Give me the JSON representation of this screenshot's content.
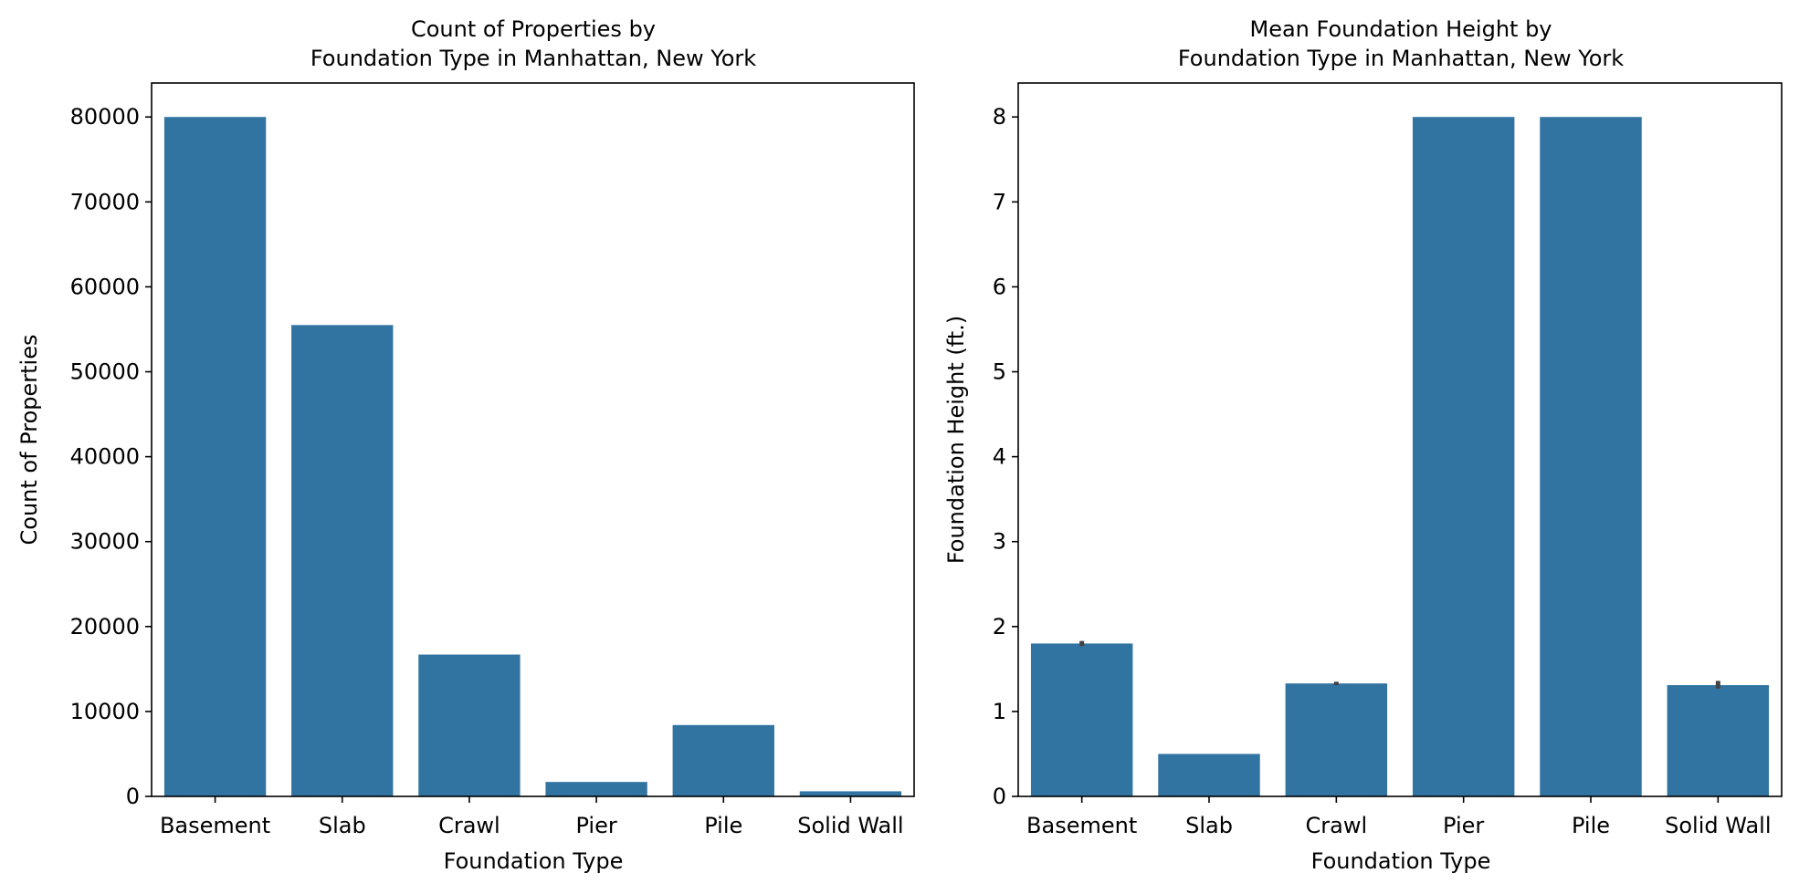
{
  "chart_data": [
    {
      "type": "bar",
      "title_lines": [
        "Count of Properties by",
        "Foundation Type in Manhattan, New York"
      ],
      "xlabel": "Foundation Type",
      "ylabel": "Count of Properties",
      "categories": [
        "Basement",
        "Slab",
        "Crawl",
        "Pier",
        "Pile",
        "Solid Wall"
      ],
      "values": [
        80000,
        55500,
        16700,
        1700,
        8400,
        600
      ],
      "ylim": [
        0,
        84000
      ],
      "yticks": [
        0,
        10000,
        20000,
        30000,
        40000,
        50000,
        60000,
        70000,
        80000
      ],
      "grid": false,
      "bar_color": "#3274a1",
      "error_bars": null
    },
    {
      "type": "bar",
      "title_lines": [
        "Mean Foundation Height by",
        "Foundation Type in Manhattan, New York"
      ],
      "xlabel": "Foundation Type",
      "ylabel": "Foundation Height (ft.)",
      "categories": [
        "Basement",
        "Slab",
        "Crawl",
        "Pier",
        "Pile",
        "Solid Wall"
      ],
      "values": [
        1.8,
        0.5,
        1.33,
        8.0,
        8.0,
        1.31
      ],
      "ylim": [
        0,
        8.4
      ],
      "yticks": [
        0,
        1,
        2,
        3,
        4,
        5,
        6,
        7,
        8
      ],
      "grid": false,
      "bar_color": "#3274a1",
      "error_bars": [
        [
          1.77,
          1.83
        ],
        null,
        [
          1.31,
          1.35
        ],
        null,
        null,
        [
          1.27,
          1.36
        ]
      ]
    }
  ]
}
